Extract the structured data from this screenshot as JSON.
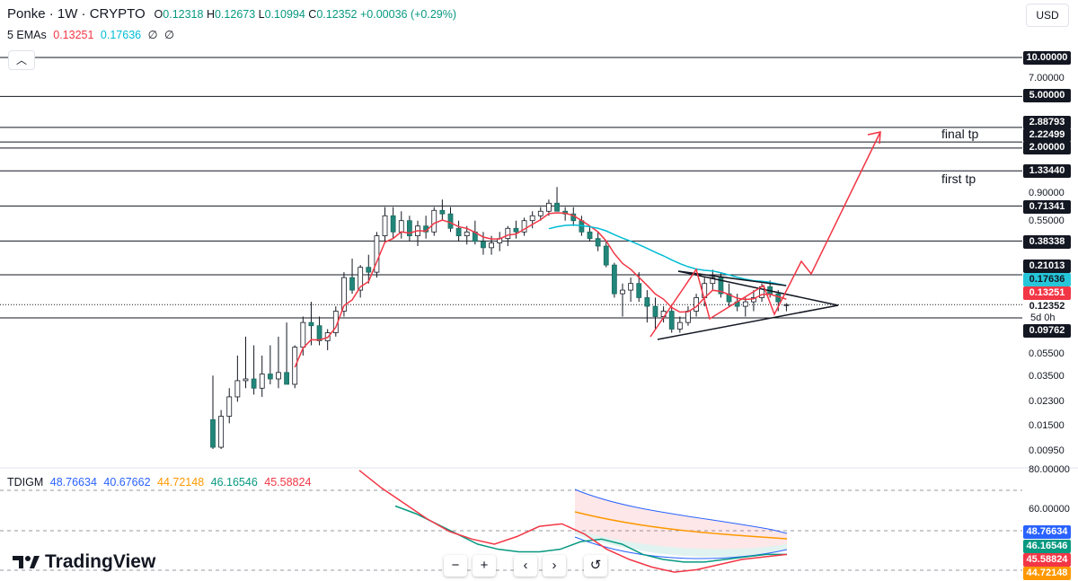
{
  "header": {
    "symbol": "Ponke · 1W · CRYPTO",
    "o_key": "O",
    "o_val": "0.12318",
    "h_key": "H",
    "h_val": "0.12673",
    "l_key": "L",
    "l_val": "0.10994",
    "c_key": "C",
    "c_val": "0.12352",
    "change": "+0.00036 (+0.29%)"
  },
  "ema": {
    "label": "5 EMAs",
    "v1": "0.13251",
    "v2": "0.17636",
    "v3": "∅",
    "v4": "∅"
  },
  "currency": "USD",
  "price_axis": {
    "ticks": [
      "7.00000",
      "0.90000",
      "0.55000",
      "0.05500",
      "0.03500",
      "0.02300",
      "0.01500",
      "0.00950",
      "80.00000",
      "60.00000"
    ],
    "badges": [
      "10.00000",
      "5.00000",
      "2.88793",
      "2.22499",
      "2.00000",
      "1.33440",
      "0.71341",
      "0.38338",
      "0.21013",
      "0.17636",
      "0.13251",
      "0.12352",
      "0.09762",
      "48.76634",
      "46.16546",
      "45.58824",
      "44.72148"
    ],
    "countdown": "5d 0h"
  },
  "annotations": {
    "final_tp": "final tp",
    "first_tp": "first tp"
  },
  "indicator": {
    "name": "TDIGM",
    "v1": "48.76634",
    "v2": "40.67662",
    "v3": "44.72148",
    "v4": "46.16546",
    "v5": "45.58824"
  },
  "brand": "TradingView",
  "nav": {
    "zoom_out": "−",
    "zoom_in": "+",
    "left": "‹",
    "right": "›",
    "reset": "↺"
  },
  "chart_data": {
    "type": "candlestick",
    "scale": "log",
    "ylim": [
      0.0095,
      10.0
    ],
    "horizontal_levels": [
      10.0,
      5.0,
      2.88793,
      2.22499,
      2.0,
      1.3344,
      0.71341,
      0.38338,
      0.21013,
      0.09762
    ],
    "last_close": 0.12352,
    "ema_values": [
      0.13251,
      0.17636
    ],
    "candles": [
      [
        0.016,
        0.035,
        0.0095,
        0.0098
      ],
      [
        0.0098,
        0.019,
        0.0095,
        0.017
      ],
      [
        0.017,
        0.028,
        0.015,
        0.024
      ],
      [
        0.024,
        0.05,
        0.022,
        0.032
      ],
      [
        0.032,
        0.07,
        0.028,
        0.033
      ],
      [
        0.033,
        0.06,
        0.025,
        0.028
      ],
      [
        0.028,
        0.05,
        0.024,
        0.036
      ],
      [
        0.036,
        0.06,
        0.03,
        0.033
      ],
      [
        0.033,
        0.07,
        0.028,
        0.037
      ],
      [
        0.037,
        0.09,
        0.03,
        0.03
      ],
      [
        0.03,
        0.06,
        0.028,
        0.058
      ],
      [
        0.058,
        0.1,
        0.05,
        0.09
      ],
      [
        0.09,
        0.13,
        0.06,
        0.085
      ],
      [
        0.085,
        0.1,
        0.06,
        0.065
      ],
      [
        0.065,
        0.08,
        0.055,
        0.075
      ],
      [
        0.075,
        0.12,
        0.07,
        0.11
      ],
      [
        0.11,
        0.22,
        0.1,
        0.2
      ],
      [
        0.2,
        0.28,
        0.15,
        0.16
      ],
      [
        0.16,
        0.25,
        0.14,
        0.24
      ],
      [
        0.24,
        0.3,
        0.18,
        0.22
      ],
      [
        0.22,
        0.45,
        0.2,
        0.42
      ],
      [
        0.42,
        0.7,
        0.38,
        0.6
      ],
      [
        0.6,
        0.7,
        0.4,
        0.45
      ],
      [
        0.45,
        0.65,
        0.4,
        0.55
      ],
      [
        0.55,
        0.6,
        0.38,
        0.42
      ],
      [
        0.42,
        0.55,
        0.35,
        0.5
      ],
      [
        0.5,
        0.6,
        0.4,
        0.45
      ],
      [
        0.45,
        0.7,
        0.42,
        0.66
      ],
      [
        0.66,
        0.8,
        0.55,
        0.62
      ],
      [
        0.62,
        0.7,
        0.45,
        0.48
      ],
      [
        0.48,
        0.55,
        0.38,
        0.42
      ],
      [
        0.42,
        0.5,
        0.36,
        0.45
      ],
      [
        0.45,
        0.55,
        0.36,
        0.38
      ],
      [
        0.38,
        0.45,
        0.3,
        0.34
      ],
      [
        0.34,
        0.42,
        0.3,
        0.37
      ],
      [
        0.37,
        0.45,
        0.32,
        0.4
      ],
      [
        0.4,
        0.5,
        0.35,
        0.48
      ],
      [
        0.48,
        0.55,
        0.4,
        0.45
      ],
      [
        0.45,
        0.58,
        0.42,
        0.55
      ],
      [
        0.55,
        0.65,
        0.48,
        0.6
      ],
      [
        0.6,
        0.7,
        0.55,
        0.65
      ],
      [
        0.65,
        0.8,
        0.6,
        0.75
      ],
      [
        0.75,
        1.0,
        0.65,
        0.65
      ],
      [
        0.65,
        0.7,
        0.55,
        0.62
      ],
      [
        0.62,
        0.7,
        0.5,
        0.55
      ],
      [
        0.55,
        0.6,
        0.42,
        0.45
      ],
      [
        0.45,
        0.5,
        0.38,
        0.4
      ],
      [
        0.4,
        0.45,
        0.32,
        0.35
      ],
      [
        0.35,
        0.38,
        0.24,
        0.25
      ],
      [
        0.25,
        0.26,
        0.14,
        0.15
      ],
      [
        0.15,
        0.18,
        0.1,
        0.16
      ],
      [
        0.16,
        0.2,
        0.13,
        0.18
      ],
      [
        0.18,
        0.22,
        0.13,
        0.14
      ],
      [
        0.14,
        0.16,
        0.09,
        0.12
      ],
      [
        0.12,
        0.14,
        0.08,
        0.1
      ],
      [
        0.1,
        0.12,
        0.09,
        0.11
      ],
      [
        0.11,
        0.12,
        0.075,
        0.08
      ],
      [
        0.08,
        0.1,
        0.075,
        0.09
      ],
      [
        0.09,
        0.12,
        0.085,
        0.11
      ],
      [
        0.11,
        0.15,
        0.1,
        0.14
      ],
      [
        0.14,
        0.2,
        0.12,
        0.18
      ],
      [
        0.18,
        0.23,
        0.16,
        0.2
      ],
      [
        0.2,
        0.22,
        0.14,
        0.15
      ],
      [
        0.15,
        0.18,
        0.12,
        0.13
      ],
      [
        0.13,
        0.15,
        0.11,
        0.12
      ],
      [
        0.12,
        0.14,
        0.1,
        0.13
      ],
      [
        0.13,
        0.16,
        0.11,
        0.14
      ],
      [
        0.14,
        0.18,
        0.13,
        0.17
      ],
      [
        0.17,
        0.19,
        0.14,
        0.15
      ],
      [
        0.15,
        0.16,
        0.11,
        0.13
      ],
      [
        0.12318,
        0.12673,
        0.10994,
        0.12352
      ]
    ],
    "tdi_series": [
      {
        "name": "48.76634",
        "values": [
          70,
          68,
          64,
          60,
          57,
          56,
          56,
          57,
          59,
          61,
          58,
          52,
          50,
          48,
          47,
          47,
          46,
          45,
          46,
          48
        ]
      },
      {
        "name": "46.16546",
        "values": [
          65,
          62,
          58,
          54,
          50,
          48,
          47,
          47,
          48,
          51,
          52,
          50,
          46,
          44,
          43,
          43,
          44,
          45,
          46,
          46
        ]
      },
      {
        "name": "45.58824",
        "values": [
          79,
          72,
          66,
          60,
          55,
          52,
          50,
          53,
          57,
          58,
          54,
          48,
          44,
          41,
          39,
          40,
          42,
          44,
          45,
          46
        ]
      }
    ]
  }
}
